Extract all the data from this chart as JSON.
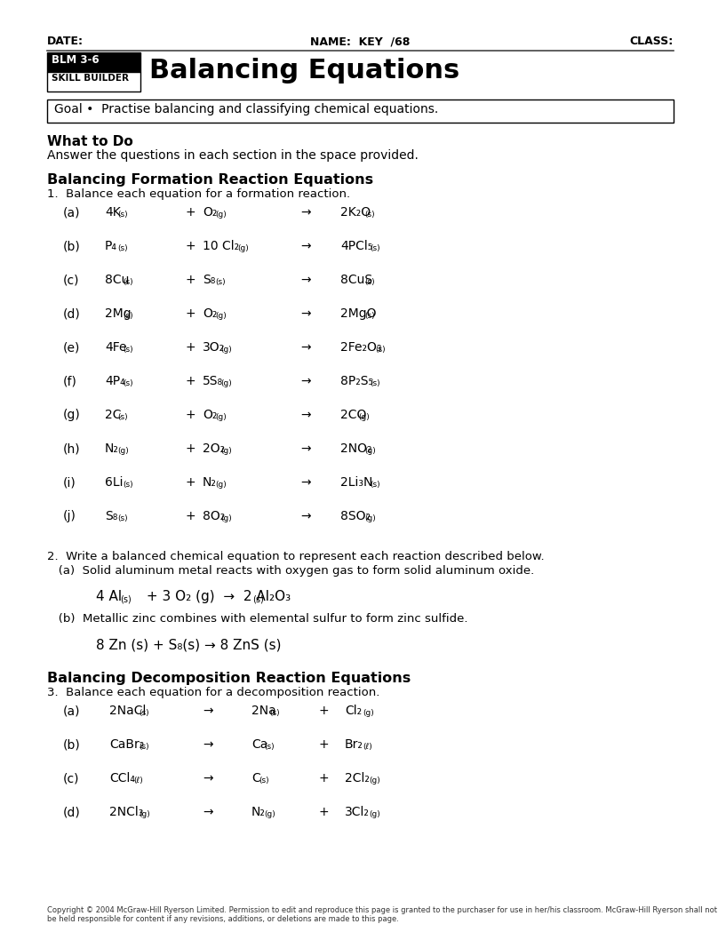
{
  "page_width": 7.91,
  "page_height": 10.24,
  "background": "#ffffff",
  "date_label": "DATE:",
  "name_label": "NAME:  KEY  /68",
  "class_label": "CLASS:",
  "blm_box_text": "BLM 3-6",
  "skill_builder_text": "SKILL BUILDER",
  "title_text": "Balancing Equations",
  "goal_text": "Goal •  Practise balancing and classifying chemical equations.",
  "what_to_do_header": "What to Do",
  "what_to_do_body": "Answer the questions in each section in the space provided.",
  "section1_header": "Balancing Formation Reaction Equations",
  "section1_intro": "1.  Balance each equation for a formation reaction.",
  "section2_intro": "2.  Write a balanced chemical equation to represent each reaction described below.",
  "section2a_desc": "   (a)  Solid aluminum metal reacts with oxygen gas to form solid aluminum oxide.",
  "section2b_desc": "   (b)  Metallic zinc combines with elemental sulfur to form zinc sulfide.",
  "section3_header": "Balancing Decomposition Reaction Equations",
  "section3_intro": "3.  Balance each equation for a decomposition reaction.",
  "copyright": "Copyright © 2004 McGraw-Hill Ryerson Limited. Permission to edit and reproduce this page is granted to the purchaser for use in her/his classroom. McGraw-Hill Ryerson shall not\nbe held responsible for content if any revisions, additions, or deletions are made to this page."
}
